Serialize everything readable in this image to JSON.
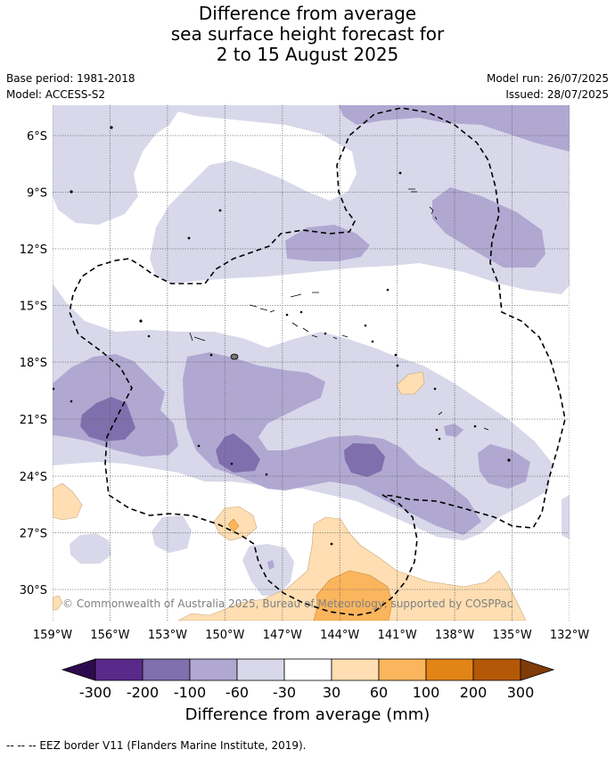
{
  "title": {
    "line1": "Difference from average",
    "line2": "sea surface height forecast for",
    "line3": "2 to 15 August 2025"
  },
  "meta": {
    "base_period": "Base period: 1981-2018",
    "model": "Model: ACCESS-S2",
    "model_run": "Model run: 26/07/2025",
    "issued": "Issued: 28/07/2025"
  },
  "map": {
    "lon_labels": [
      "159°W",
      "156°W",
      "153°W",
      "150°W",
      "147°W",
      "144°W",
      "141°W",
      "138°W",
      "135°W",
      "132°W"
    ],
    "lat_labels": [
      "6°S",
      "9°S",
      "12°S",
      "15°S",
      "18°S",
      "21°S",
      "24°S",
      "27°S",
      "30°S"
    ],
    "copyright": "© Commonwealth of Australia 2025, Bureau of Meteorology, supported by COSPPac"
  },
  "colorbar": {
    "labels": [
      "-300",
      "-200",
      "-100",
      "-60",
      "-30",
      "30",
      "60",
      "100",
      "200",
      "300"
    ],
    "colors": [
      "#2d0a4e",
      "#5a2a8a",
      "#7f6fad",
      "#b0a8d1",
      "#d8d8ea",
      "#ffffff",
      "#fedeb2",
      "#fbb55c",
      "#e28416",
      "#b35806",
      "#7f3b08"
    ],
    "title": "Difference from average (mm)"
  },
  "footnote": "--  --  -- EEZ border V11 (Flanders Marine Institute, 2019)."
}
